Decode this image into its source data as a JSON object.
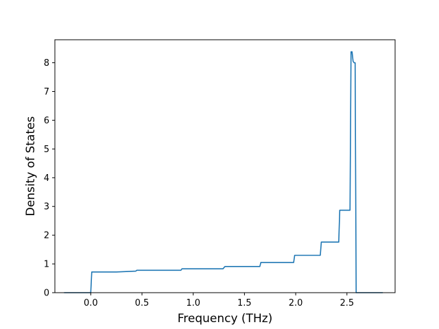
{
  "chart_data": {
    "type": "line",
    "title": "",
    "xlabel": "Frequency (THz)",
    "ylabel": "Density of States",
    "xlim": [
      -0.35,
      2.97
    ],
    "ylim": [
      0,
      8.8
    ],
    "grid": false,
    "legend": "none",
    "x_ticks": [
      0.0,
      0.5,
      1.0,
      1.5,
      2.0,
      2.5
    ],
    "x_tick_labels": [
      "0.0",
      "0.5",
      "1.0",
      "1.5",
      "2.0",
      "2.5"
    ],
    "y_ticks": [
      0,
      1,
      2,
      3,
      4,
      5,
      6,
      7,
      8
    ],
    "y_tick_labels": [
      "0",
      "1",
      "2",
      "3",
      "4",
      "5",
      "6",
      "7",
      "8"
    ],
    "series": [
      {
        "color": "#1f77b4",
        "x": [
          -0.26,
          0.0,
          0.01,
          0.25,
          0.44,
          0.45,
          0.88,
          0.89,
          1.29,
          1.31,
          1.65,
          1.66,
          1.98,
          1.99,
          2.24,
          2.25,
          2.42,
          2.43,
          2.53,
          2.54,
          2.55,
          2.56,
          2.57,
          2.58,
          2.59,
          2.85
        ],
        "y": [
          0,
          0,
          0.72,
          0.72,
          0.75,
          0.78,
          0.78,
          0.83,
          0.83,
          0.91,
          0.91,
          1.05,
          1.05,
          1.3,
          1.3,
          1.76,
          1.76,
          2.87,
          2.87,
          8.38,
          8.38,
          8.05,
          8.0,
          8.0,
          0,
          0
        ]
      }
    ]
  }
}
